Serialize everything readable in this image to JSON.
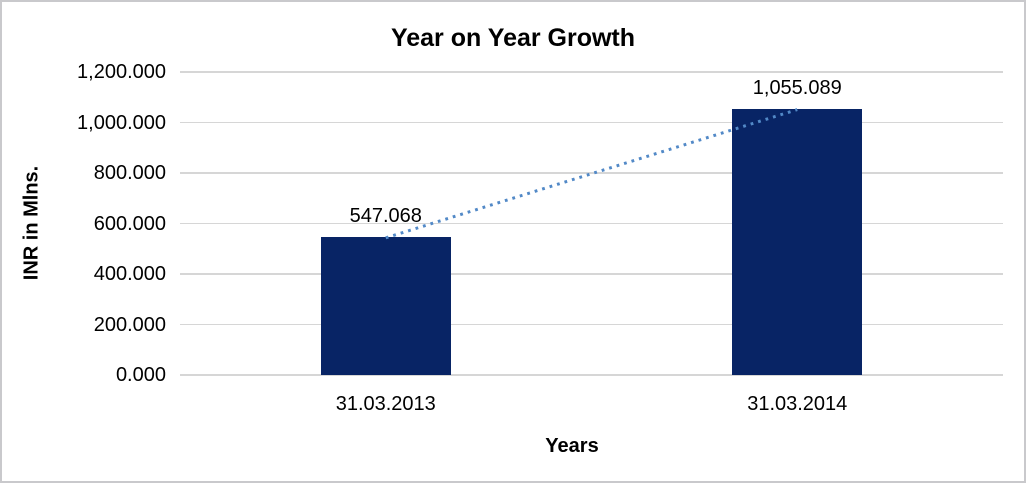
{
  "chart_data": {
    "type": "bar",
    "title": "Year on Year Growth",
    "xlabel": "Years",
    "ylabel": "INR in Mlns.",
    "categories": [
      "31.03.2013",
      "31.03.2014"
    ],
    "values": [
      547.068,
      1055.089
    ],
    "value_labels": [
      "547.068",
      "1,055.089"
    ],
    "y_tick_values": [
      0,
      200,
      400,
      600,
      800,
      1000,
      1200
    ],
    "y_tick_labels": [
      "0.000",
      "200.000",
      "400.000",
      "600.000",
      "800.000",
      "1,000.000",
      "1,200.000"
    ],
    "ylim": [
      0,
      1200
    ],
    "grid": true,
    "legend_visible": false,
    "trendline": {
      "style": "dotted",
      "connects": [
        "31.03.2013",
        "31.03.2014"
      ]
    },
    "colors": {
      "bar": "#082465",
      "trendline": "#5289c7",
      "gridline": "#d6d6d6",
      "frame_border": "#c9c9cc",
      "background": "#ffffff",
      "text": "#000000"
    }
  }
}
